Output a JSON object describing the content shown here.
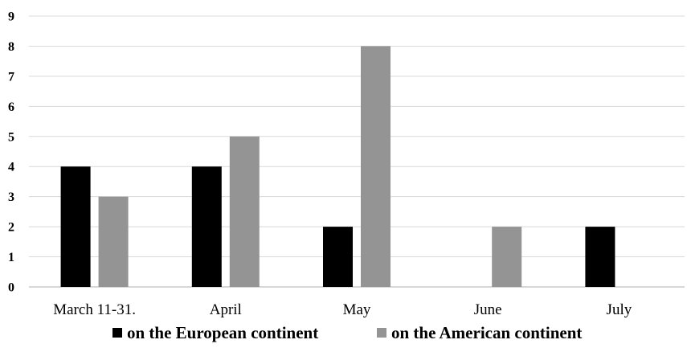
{
  "chart_data": {
    "type": "bar",
    "categories": [
      "March 11-31.",
      "April",
      "May",
      "June",
      "July"
    ],
    "series": [
      {
        "name": "on the European continent",
        "values": [
          4,
          4,
          2,
          0,
          2
        ],
        "color": "#000000"
      },
      {
        "name": "on the American continent",
        "values": [
          3,
          5,
          8,
          2,
          0
        ],
        "color": "#949494"
      }
    ],
    "ylim": [
      0,
      9
    ],
    "yticks": [
      0,
      1,
      2,
      3,
      4,
      5,
      6,
      7,
      8,
      9
    ],
    "grid": true,
    "legend_position": "bottom"
  }
}
